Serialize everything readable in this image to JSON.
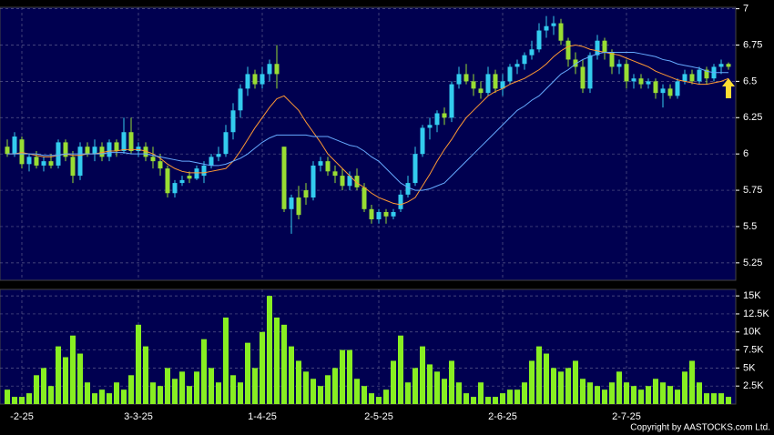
{
  "chart_data": [
    {
      "type": "candlestick",
      "up_color": "#33ccee",
      "down_color": "#99dd33",
      "grid": true,
      "xlim": [
        -1,
        100
      ],
      "ylim": [
        5.13,
        7.01
      ],
      "yticks": [
        5.25,
        5.5,
        5.75,
        6,
        6.25,
        6.5,
        6.75,
        7
      ],
      "xticks": [
        {
          "value": 2,
          "label": "-2-25"
        },
        {
          "value": 18,
          "label": "3-3-25"
        },
        {
          "value": 35,
          "label": "1-4-25"
        },
        {
          "value": 51,
          "label": "2-5-25"
        },
        {
          "value": 68,
          "label": "2-6-25"
        },
        {
          "value": 85,
          "label": "2-7-25"
        }
      ],
      "candles": [
        [
          6.05,
          6.1,
          5.98,
          6.0
        ],
        [
          6.0,
          6.15,
          5.98,
          6.12
        ],
        [
          6.1,
          6.12,
          5.9,
          5.93
        ],
        [
          5.93,
          6.0,
          5.88,
          5.98
        ],
        [
          5.98,
          6.02,
          5.9,
          5.92
        ],
        [
          5.92,
          5.98,
          5.88,
          5.95
        ],
        [
          5.95,
          6.0,
          5.9,
          5.92
        ],
        [
          5.92,
          6.1,
          5.9,
          6.08
        ],
        [
          6.08,
          6.1,
          5.95,
          5.98
        ],
        [
          5.98,
          6.02,
          5.8,
          5.85
        ],
        [
          5.85,
          6.08,
          5.82,
          6.05
        ],
        [
          6.05,
          6.08,
          5.98,
          6.0
        ],
        [
          6.0,
          6.1,
          5.95,
          6.05
        ],
        [
          6.05,
          6.08,
          5.95,
          5.98
        ],
        [
          5.98,
          6.1,
          5.95,
          6.08
        ],
        [
          6.08,
          6.1,
          5.98,
          6.02
        ],
        [
          6.02,
          6.25,
          6.0,
          6.15
        ],
        [
          6.15,
          6.25,
          6.0,
          6.02
        ],
        [
          6.02,
          6.08,
          5.98,
          6.05
        ],
        [
          6.05,
          6.08,
          5.95,
          5.98
        ],
        [
          5.98,
          6.05,
          5.9,
          5.95
        ],
        [
          5.95,
          6.0,
          5.85,
          5.9
        ],
        [
          5.9,
          5.92,
          5.7,
          5.73
        ],
        [
          5.73,
          5.82,
          5.7,
          5.8
        ],
        [
          5.8,
          5.85,
          5.78,
          5.82
        ],
        [
          5.85,
          5.88,
          5.8,
          5.83
        ],
        [
          5.83,
          5.92,
          5.82,
          5.9
        ],
        [
          5.85,
          5.95,
          5.8,
          5.92
        ],
        [
          5.92,
          6.0,
          5.9,
          5.98
        ],
        [
          5.98,
          6.05,
          5.95,
          6.0
        ],
        [
          6.0,
          6.2,
          5.98,
          6.15
        ],
        [
          6.15,
          6.35,
          6.1,
          6.3
        ],
        [
          6.3,
          6.48,
          6.25,
          6.45
        ],
        [
          6.45,
          6.6,
          6.4,
          6.55
        ],
        [
          6.55,
          6.58,
          6.45,
          6.48
        ],
        [
          6.48,
          6.6,
          6.45,
          6.55
        ],
        [
          6.55,
          6.65,
          6.5,
          6.62
        ],
        [
          6.62,
          6.75,
          6.45,
          6.55
        ],
        [
          6.05,
          6.05,
          5.6,
          5.62
        ],
        [
          5.62,
          5.72,
          5.45,
          5.7
        ],
        [
          5.7,
          5.78,
          5.55,
          5.58
        ],
        [
          5.75,
          5.8,
          5.65,
          5.7
        ],
        [
          5.7,
          5.95,
          5.68,
          5.92
        ],
        [
          5.92,
          5.98,
          5.88,
          5.95
        ],
        [
          5.95,
          5.98,
          5.85,
          5.88
        ],
        [
          5.88,
          5.92,
          5.8,
          5.85
        ],
        [
          5.85,
          5.9,
          5.75,
          5.78
        ],
        [
          5.78,
          5.88,
          5.75,
          5.85
        ],
        [
          5.85,
          5.9,
          5.75,
          5.77
        ],
        [
          5.77,
          5.8,
          5.6,
          5.62
        ],
        [
          5.62,
          5.65,
          5.52,
          5.55
        ],
        [
          5.55,
          5.62,
          5.52,
          5.6
        ],
        [
          5.6,
          5.62,
          5.52,
          5.57
        ],
        [
          5.57,
          5.62,
          5.55,
          5.6
        ],
        [
          5.62,
          5.75,
          5.6,
          5.72
        ],
        [
          5.72,
          5.85,
          5.7,
          5.8
        ],
        [
          5.8,
          6.05,
          5.78,
          6.0
        ],
        [
          6.0,
          6.2,
          5.98,
          6.18
        ],
        [
          6.18,
          6.25,
          6.1,
          6.2
        ],
        [
          6.2,
          6.3,
          6.15,
          6.28
        ],
        [
          6.28,
          6.32,
          6.2,
          6.25
        ],
        [
          6.25,
          6.5,
          6.22,
          6.48
        ],
        [
          6.48,
          6.6,
          6.45,
          6.55
        ],
        [
          6.55,
          6.62,
          6.48,
          6.5
        ],
        [
          6.5,
          6.55,
          6.4,
          6.45
        ],
        [
          6.45,
          6.5,
          6.38,
          6.42
        ],
        [
          6.42,
          6.6,
          6.4,
          6.55
        ],
        [
          6.55,
          6.58,
          6.42,
          6.45
        ],
        [
          6.45,
          6.55,
          6.4,
          6.5
        ],
        [
          6.5,
          6.62,
          6.48,
          6.6
        ],
        [
          6.6,
          6.65,
          6.55,
          6.62
        ],
        [
          6.62,
          6.7,
          6.58,
          6.68
        ],
        [
          6.68,
          6.78,
          6.65,
          6.72
        ],
        [
          6.72,
          6.9,
          6.7,
          6.85
        ],
        [
          6.85,
          6.95,
          6.8,
          6.88
        ],
        [
          6.88,
          6.95,
          6.82,
          6.9
        ],
        [
          6.9,
          6.93,
          6.75,
          6.78
        ],
        [
          6.78,
          6.8,
          6.6,
          6.65
        ],
        [
          6.65,
          6.7,
          6.55,
          6.6
        ],
        [
          6.6,
          6.65,
          6.42,
          6.45
        ],
        [
          6.45,
          6.7,
          6.42,
          6.68
        ],
        [
          6.68,
          6.82,
          6.65,
          6.78
        ],
        [
          6.78,
          6.8,
          6.65,
          6.7
        ],
        [
          6.7,
          6.72,
          6.55,
          6.6
        ],
        [
          6.6,
          6.65,
          6.55,
          6.62
        ],
        [
          6.62,
          6.65,
          6.45,
          6.5
        ],
        [
          6.5,
          6.55,
          6.45,
          6.52
        ],
        [
          6.52,
          6.55,
          6.45,
          6.48
        ],
        [
          6.48,
          6.52,
          6.45,
          6.5
        ],
        [
          6.5,
          6.52,
          6.38,
          6.42
        ],
        [
          6.42,
          6.48,
          6.32,
          6.45
        ],
        [
          6.45,
          6.48,
          6.38,
          6.4
        ],
        [
          6.4,
          6.52,
          6.38,
          6.5
        ],
        [
          6.5,
          6.58,
          6.48,
          6.55
        ],
        [
          6.55,
          6.58,
          6.48,
          6.5
        ],
        [
          6.5,
          6.6,
          6.48,
          6.58
        ],
        [
          6.58,
          6.6,
          6.48,
          6.52
        ],
        [
          6.52,
          6.62,
          6.5,
          6.6
        ],
        [
          6.6,
          6.65,
          6.55,
          6.62
        ],
        [
          6.62,
          6.63,
          6.58,
          6.6
        ]
      ],
      "series": [
        {
          "color": "#ff9933",
          "values": [
            6.0,
            6.0,
            6.01,
            6.0,
            5.99,
            5.98,
            5.98,
            5.99,
            6.0,
            5.99,
            5.99,
            6.0,
            6.0,
            6.01,
            6.02,
            6.02,
            6.03,
            6.03,
            6.03,
            6.02,
            6.0,
            5.97,
            5.93,
            5.9,
            5.88,
            5.87,
            5.87,
            5.87,
            5.88,
            5.89,
            5.9,
            5.95,
            6.02,
            6.1,
            6.18,
            6.25,
            6.32,
            6.38,
            6.4,
            6.35,
            6.3,
            6.22,
            6.15,
            6.08,
            6.0,
            5.95,
            5.9,
            5.85,
            5.8,
            5.77,
            5.73,
            5.7,
            5.68,
            5.66,
            5.65,
            5.67,
            5.7,
            5.78,
            5.86,
            5.95,
            6.03,
            6.1,
            6.18,
            6.25,
            6.3,
            6.35,
            6.4,
            6.43,
            6.45,
            6.48,
            6.5,
            6.52,
            6.55,
            6.58,
            6.62,
            6.67,
            6.71,
            6.74,
            6.75,
            6.74,
            6.72,
            6.71,
            6.7,
            6.69,
            6.68,
            6.66,
            6.64,
            6.62,
            6.6,
            6.57,
            6.55,
            6.53,
            6.51,
            6.5,
            6.49,
            6.48,
            6.48,
            6.49,
            6.5,
            6.52
          ]
        },
        {
          "color": "#66aaff",
          "values": [
            6.0,
            6.0,
            6.0,
            6.0,
            6.0,
            5.99,
            5.99,
            5.99,
            6.0,
            6.0,
            6.0,
            6.0,
            6.0,
            6.0,
            6.01,
            6.01,
            6.01,
            6.0,
            6.0,
            6.0,
            5.99,
            5.98,
            5.97,
            5.96,
            5.95,
            5.95,
            5.94,
            5.93,
            5.92,
            5.92,
            5.93,
            5.95,
            5.97,
            6.0,
            6.04,
            6.08,
            6.11,
            6.13,
            6.13,
            6.13,
            6.13,
            6.13,
            6.12,
            6.12,
            6.12,
            6.1,
            6.08,
            6.06,
            6.05,
            6.02,
            5.98,
            5.95,
            5.9,
            5.85,
            5.8,
            5.77,
            5.75,
            5.75,
            5.76,
            5.78,
            5.8,
            5.85,
            5.9,
            5.95,
            6.0,
            6.05,
            6.1,
            6.15,
            6.2,
            6.25,
            6.3,
            6.33,
            6.37,
            6.4,
            6.45,
            6.5,
            6.55,
            6.58,
            6.62,
            6.65,
            6.67,
            6.69,
            6.7,
            6.7,
            6.7,
            6.7,
            6.7,
            6.69,
            6.68,
            6.67,
            6.65,
            6.64,
            6.62,
            6.61,
            6.6,
            6.59,
            6.57,
            6.56,
            6.56,
            6.56
          ]
        }
      ]
    },
    {
      "type": "bar",
      "color": "#88ee22",
      "grid": true,
      "xlim": [
        -1,
        100
      ],
      "ylim": [
        0,
        15900
      ],
      "yticks": [
        {
          "value": 2500,
          "label": "2.5K"
        },
        {
          "value": 5000,
          "label": "5K"
        },
        {
          "value": 7500,
          "label": "7.5K"
        },
        {
          "value": 10000,
          "label": "10K"
        },
        {
          "value": 12500,
          "label": "12.5K"
        },
        {
          "value": 15000,
          "label": "15K"
        }
      ],
      "values": [
        2000,
        1000,
        1000,
        1500,
        4000,
        5000,
        2500,
        8000,
        6500,
        9500,
        7000,
        3000,
        1500,
        2000,
        1500,
        3000,
        2000,
        4000,
        11000,
        8000,
        3000,
        2500,
        5000,
        3500,
        4500,
        2500,
        4500,
        9000,
        5000,
        3000,
        12000,
        4000,
        3000,
        8500,
        5000,
        10000,
        15000,
        12000,
        11000,
        8000,
        6000,
        4500,
        3500,
        2500,
        4000,
        5000,
        7500,
        7500,
        3500,
        2500,
        1500,
        1000,
        2000,
        6000,
        9500,
        3000,
        5000,
        8000,
        5500,
        4500,
        3500,
        6000,
        3000,
        1500,
        1000,
        3000,
        1000,
        1000,
        1500,
        2000,
        2000,
        3000,
        6000,
        8000,
        7000,
        5000,
        4500,
        5000,
        6000,
        3500,
        3000,
        2500,
        2000,
        3000,
        4500,
        3000,
        2500,
        2000,
        2500,
        3500,
        3000,
        2500,
        2000,
        4500,
        6000,
        3000,
        1500,
        1500,
        1500,
        1000
      ]
    }
  ],
  "copyright": "Copyright by AASTOCKS.com Ltd."
}
